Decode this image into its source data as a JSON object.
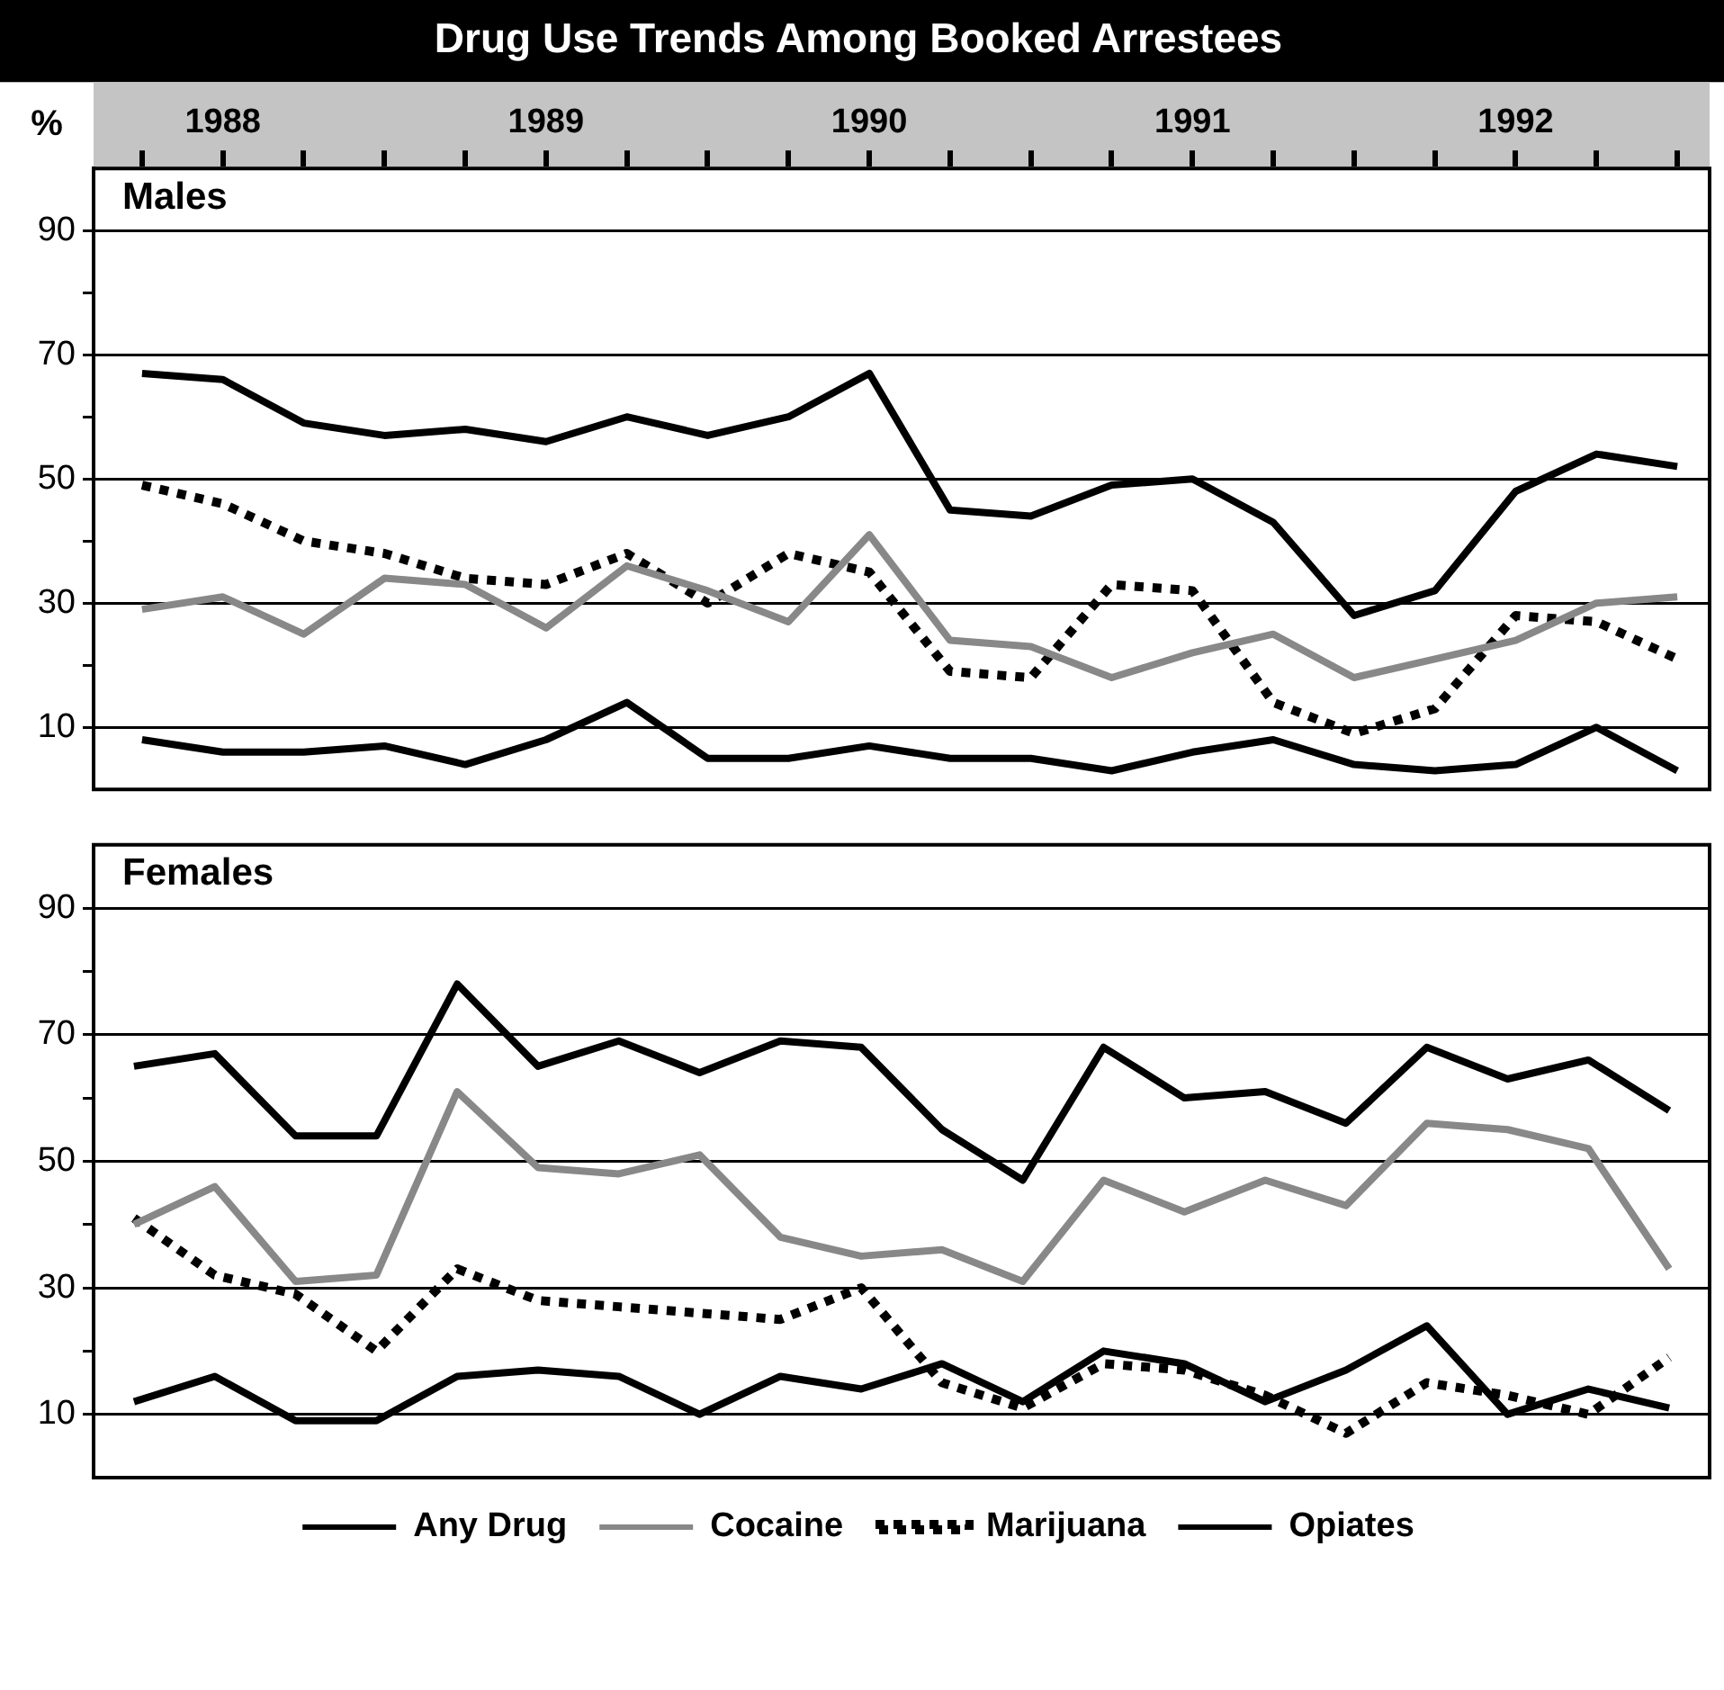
{
  "chart_data": [
    {
      "type": "line",
      "title": "Drug Use Trends Among Booked Arrestees",
      "subtitle": "Males",
      "ylabel": "%",
      "x": [
        1988.25,
        1988.5,
        1988.75,
        1989,
        1989.25,
        1989.5,
        1989.75,
        1990,
        1990.25,
        1990.5,
        1990.75,
        1991,
        1991.25,
        1991.5,
        1991.75,
        1992,
        1992.25,
        1992.5,
        1992.75,
        1993
      ],
      "xlim": [
        1988.1,
        1993.1
      ],
      "xticks": [
        {
          "value": 1988.25,
          "label": null
        },
        {
          "value": 1988.5,
          "label": "1988"
        },
        {
          "value": 1988.75,
          "label": null
        },
        {
          "value": 1989,
          "label": null
        },
        {
          "value": 1989.25,
          "label": null
        },
        {
          "value": 1989.5,
          "label": "1989"
        },
        {
          "value": 1989.75,
          "label": null
        },
        {
          "value": 1990,
          "label": null
        },
        {
          "value": 1990.25,
          "label": null
        },
        {
          "value": 1990.5,
          "label": "1990"
        },
        {
          "value": 1990.75,
          "label": null
        },
        {
          "value": 1991,
          "label": null
        },
        {
          "value": 1991.25,
          "label": null
        },
        {
          "value": 1991.5,
          "label": "1991"
        },
        {
          "value": 1991.75,
          "label": null
        },
        {
          "value": 1992,
          "label": null
        },
        {
          "value": 1992.25,
          "label": null
        },
        {
          "value": 1992.5,
          "label": "1992"
        },
        {
          "value": 1992.75,
          "label": null
        },
        {
          "value": 1993,
          "label": null
        }
      ],
      "ylim": [
        0,
        100
      ],
      "yticks": [
        10,
        {
          "value": 20,
          "label": null
        },
        30,
        {
          "value": 40,
          "label": null
        },
        50,
        {
          "value": 60,
          "label": null
        },
        70,
        {
          "value": 80,
          "label": null
        },
        90
      ],
      "grid": "y",
      "marker": "none",
      "series": [
        {
          "color": "#000000",
          "values": [
            67,
            66,
            59,
            57,
            58,
            56,
            60,
            57,
            60,
            67,
            45,
            44,
            49,
            50,
            43,
            28,
            32,
            48,
            54,
            52
          ]
        },
        {
          "color": "#888888",
          "values": [
            29,
            31,
            25,
            34,
            33,
            26,
            36,
            32,
            27,
            41,
            24,
            23,
            18,
            22,
            25,
            18,
            21,
            24,
            30,
            31
          ]
        },
        {
          "color": "#000000",
          "line_style": "dotted",
          "values": [
            49,
            46,
            40,
            38,
            34,
            33,
            38,
            30,
            38,
            35,
            19,
            18,
            33,
            32,
            14,
            9,
            13,
            28,
            27,
            21
          ]
        },
        {
          "color": "#000000",
          "values": [
            8,
            6,
            6,
            7,
            4,
            8,
            14,
            5,
            5,
            7,
            5,
            5,
            3,
            6,
            8,
            4,
            3,
            4,
            10,
            3
          ]
        }
      ]
    },
    {
      "type": "line",
      "subtitle": "Females",
      "tick_labels": "y",
      "categories": [
        null,
        null,
        null,
        null,
        null,
        null,
        null,
        null,
        null,
        null,
        null,
        null,
        null,
        null,
        null,
        null,
        null,
        null,
        null,
        null
      ],
      "ylim": [
        0,
        100
      ],
      "yticks": [
        10,
        {
          "value": 20,
          "label": null
        },
        30,
        {
          "value": 40,
          "label": null
        },
        50,
        {
          "value": 60,
          "label": null
        },
        70,
        {
          "value": 80,
          "label": null
        },
        90
      ],
      "grid": "y",
      "marker": "none",
      "legend": "bottom",
      "series": [
        {
          "name": "Any Drug",
          "color": "#000000",
          "values": [
            65,
            67,
            54,
            54,
            78,
            65,
            69,
            64,
            69,
            68,
            55,
            47,
            68,
            60,
            61,
            56,
            68,
            63,
            66,
            58
          ]
        },
        {
          "name": "Cocaine",
          "color": "#888888",
          "values": [
            40,
            46,
            31,
            32,
            61,
            49,
            48,
            51,
            38,
            35,
            36,
            31,
            47,
            42,
            47,
            43,
            56,
            55,
            52,
            33
          ]
        },
        {
          "name": "Marijuana",
          "color": "#000000",
          "line_style": "dotted",
          "values": [
            41,
            32,
            29,
            20,
            33,
            28,
            27,
            26,
            25,
            30,
            15,
            11,
            18,
            17,
            13,
            7,
            15,
            13,
            10,
            19
          ]
        },
        {
          "name": "Opiates",
          "color": "#000000",
          "values": [
            12,
            16,
            9,
            9,
            16,
            17,
            16,
            10,
            16,
            14,
            18,
            12,
            20,
            18,
            12,
            17,
            24,
            10,
            14,
            11
          ]
        }
      ]
    }
  ]
}
